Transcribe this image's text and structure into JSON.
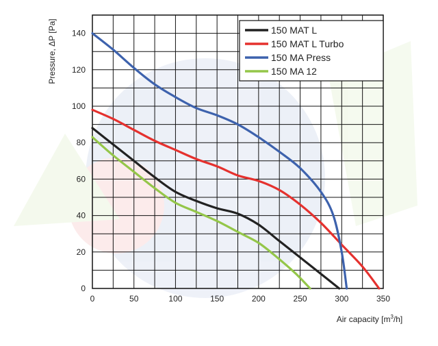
{
  "chart_data": {
    "type": "line",
    "xlabel": "Air capacity [m",
    "xlabel_sup": "3",
    "xlabel_suffix": "/h]",
    "ylabel": "Pressure, ΔP [Pa]",
    "xlim": [
      0,
      350
    ],
    "ylim": [
      0,
      150
    ],
    "x_ticks": [
      0,
      50,
      100,
      150,
      200,
      250,
      300,
      350
    ],
    "y_ticks": [
      0,
      20,
      40,
      60,
      80,
      100,
      120,
      140
    ],
    "x_gridlines": [
      0,
      25,
      50,
      75,
      100,
      125,
      150,
      175,
      200,
      225,
      250,
      275,
      300,
      325,
      350
    ],
    "y_gridlines": [
      0,
      10,
      20,
      30,
      40,
      50,
      60,
      70,
      80,
      90,
      100,
      110,
      120,
      130,
      140,
      150
    ],
    "grid": true,
    "legend_position": "top-right",
    "series": [
      {
        "name": "150 MAT L",
        "color": "#222222",
        "x": [
          0,
          25,
          50,
          75,
          100,
          125,
          150,
          175,
          200,
          225,
          250,
          275,
          297
        ],
        "y": [
          88,
          79,
          70,
          61,
          53,
          48,
          44,
          41,
          35,
          26,
          17,
          8,
          0
        ]
      },
      {
        "name": "150 MAT L Turbo",
        "color": "#e5312e",
        "x": [
          0,
          25,
          50,
          75,
          100,
          125,
          150,
          175,
          200,
          225,
          250,
          275,
          300,
          325,
          345
        ],
        "y": [
          98,
          93,
          87,
          81,
          76,
          71,
          67,
          62,
          59,
          54,
          46,
          36,
          24,
          12,
          0
        ]
      },
      {
        "name": "150 MA Press",
        "color": "#3d62ad",
        "x": [
          0,
          25,
          50,
          75,
          100,
          125,
          150,
          175,
          200,
          225,
          250,
          275,
          290,
          300,
          306
        ],
        "y": [
          140,
          131,
          121,
          112,
          105,
          99,
          95,
          90,
          83,
          75,
          66,
          53,
          40,
          20,
          0
        ]
      },
      {
        "name": "150 MA 12",
        "color": "#94c649",
        "x": [
          0,
          25,
          50,
          75,
          100,
          125,
          150,
          175,
          200,
          225,
          245,
          262
        ],
        "y": [
          83,
          73,
          64,
          55,
          47,
          42,
          37,
          31,
          25,
          16,
          8,
          0
        ]
      }
    ]
  }
}
